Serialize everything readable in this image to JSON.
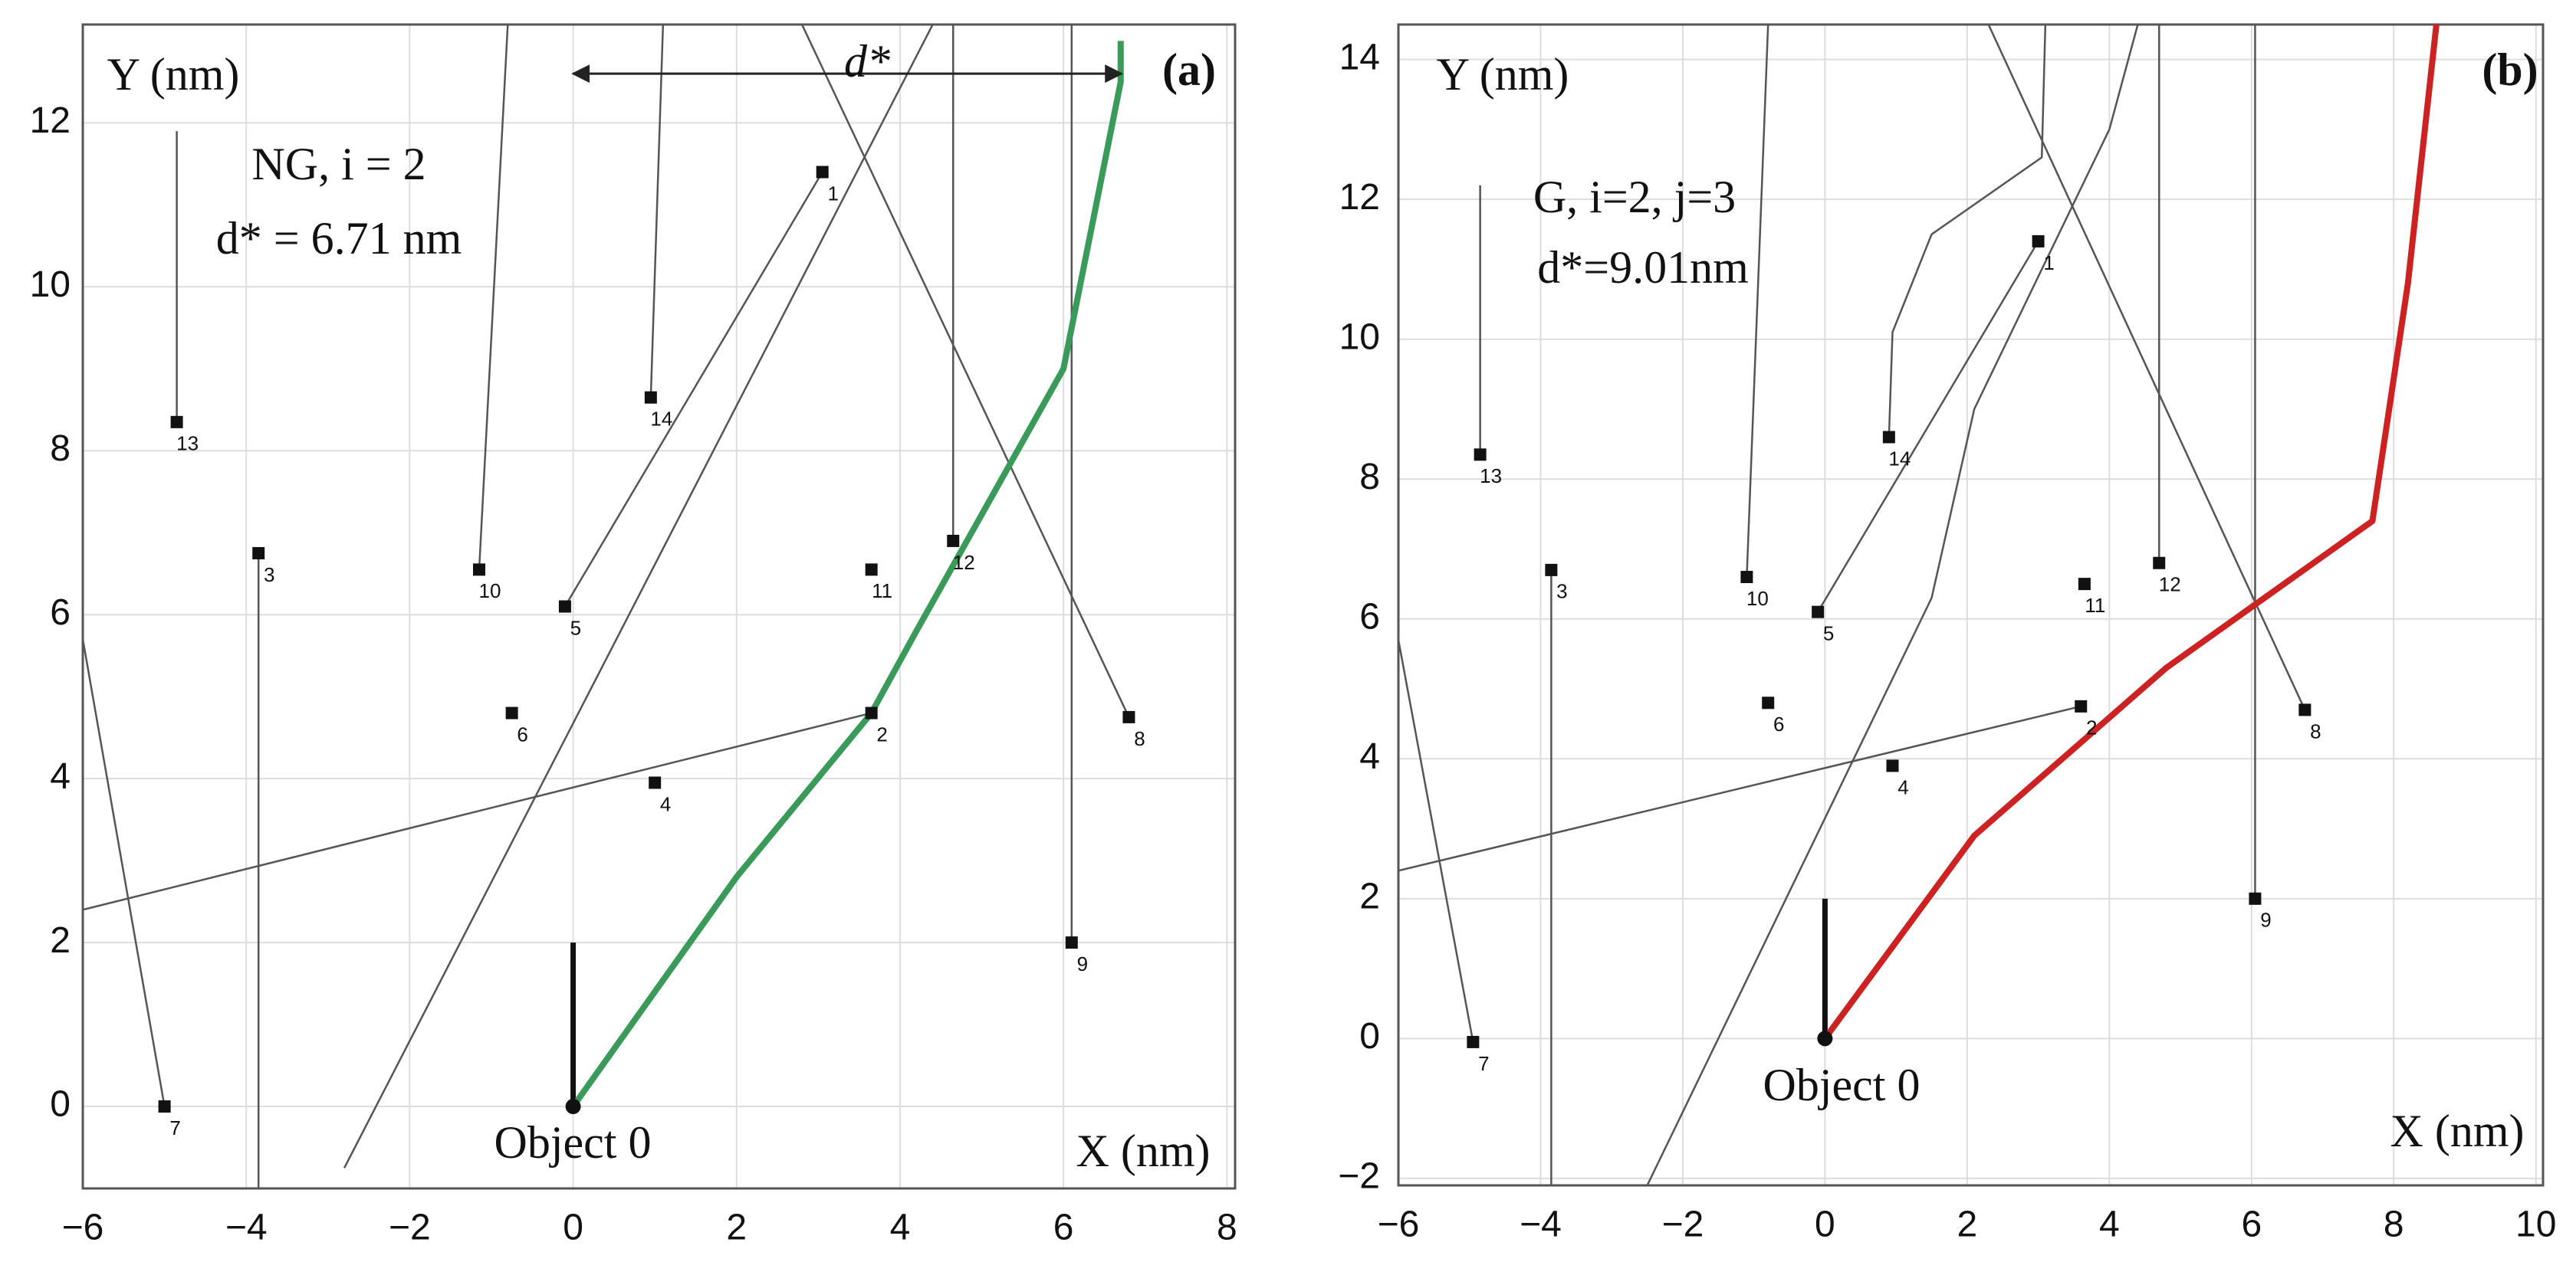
{
  "chart_data": [
    {
      "type": "trajectory",
      "panel_label": "(a)",
      "x_label": "X (nm)",
      "y_label": "Y (nm)",
      "annotations": [
        "NG, i = 2",
        "d* = 6.71 nm"
      ],
      "object_label": "Object 0",
      "xlim": [
        -6,
        8.1
      ],
      "ylim": [
        -1,
        13.2
      ],
      "xticks": [
        {
          "value": -6,
          "label": "−6"
        },
        {
          "value": -4,
          "label": "−4"
        },
        {
          "value": -2,
          "label": "−2"
        },
        0,
        2,
        4,
        6,
        8
      ],
      "yticks": [
        0,
        2,
        4,
        6,
        8,
        10,
        12
      ],
      "grid": true,
      "points": {
        "labels": [
          "1",
          "2",
          "3",
          "4",
          "5",
          "6",
          "7",
          "8",
          "9",
          "10",
          "11",
          "12",
          "13",
          "14"
        ],
        "x": [
          3.05,
          3.65,
          -3.85,
          1.0,
          -0.1,
          -0.75,
          -5,
          6.8,
          6.1,
          -1.15,
          3.65,
          4.65,
          -4.85,
          0.95
        ],
        "y": [
          11.4,
          4.8,
          6.75,
          3.95,
          6.1,
          4.8,
          0,
          4.75,
          2,
          6.55,
          6.55,
          6.9,
          8.35,
          8.65
        ]
      },
      "trajectories": [
        {
          "x": [
            -4.85,
            -4.85
          ],
          "y": [
            8.35,
            11.9
          ]
        },
        {
          "x": [
            -3.85,
            -3.85
          ],
          "y": [
            6.75,
            -1
          ]
        },
        {
          "x": [
            -5,
            -6
          ],
          "y": [
            0,
            5.7
          ]
        },
        {
          "x": [
            -1.15,
            -0.8
          ],
          "y": [
            6.55,
            13.2
          ]
        },
        {
          "x": [
            0.95,
            1.1
          ],
          "y": [
            8.65,
            13.2
          ]
        },
        {
          "x": [
            4.65,
            4.65
          ],
          "y": [
            6.9,
            13.2
          ]
        },
        {
          "x": [
            6.1,
            6.1
          ],
          "y": [
            2,
            13.2
          ]
        },
        {
          "x": [
            6.8,
            2.8
          ],
          "y": [
            4.75,
            13.2
          ]
        },
        {
          "x": [
            -0.1,
            3.05
          ],
          "y": [
            6.1,
            11.4
          ]
        },
        {
          "x": [
            3.65,
            -6
          ],
          "y": [
            4.8,
            2.4
          ]
        },
        {
          "x": [
            -2.8,
            4.4
          ],
          "y": [
            -0.75,
            13.2
          ]
        }
      ],
      "object_heading": {
        "x": [
          0,
          0
        ],
        "y": [
          0,
          2
        ]
      },
      "path": {
        "color": "#3a9a5a",
        "x": [
          0,
          2,
          3.65,
          4.2,
          6,
          6.7,
          6.7
        ],
        "y": [
          0,
          2.8,
          4.8,
          5.8,
          9,
          12.5,
          13
        ]
      },
      "dstar": {
        "label": "d*",
        "x": [
          0,
          6.71
        ],
        "y": 12.6
      }
    },
    {
      "type": "trajectory",
      "panel_label": "(b)",
      "x_label": "X (nm)",
      "y_label": "Y (nm)",
      "annotations": [
        "G, i=2, j=3",
        "d*=9.01nm"
      ],
      "object_label": "Object 0",
      "xlim": [
        -6,
        10.1
      ],
      "ylim": [
        -2.1,
        14.5
      ],
      "xticks": [
        {
          "value": -6,
          "label": "−6"
        },
        {
          "value": -4,
          "label": "−4"
        },
        {
          "value": -2,
          "label": "−2"
        },
        0,
        2,
        4,
        6,
        8,
        10
      ],
      "yticks": [
        {
          "value": -2,
          "label": "−2"
        },
        0,
        2,
        4,
        6,
        8,
        10,
        12,
        14
      ],
      "grid": true,
      "points": {
        "labels": [
          "1",
          "2",
          "3",
          "4",
          "5",
          "6",
          "7",
          "8",
          "9",
          "10",
          "11",
          "12",
          "13",
          "14"
        ],
        "x": [
          3,
          3.6,
          -3.85,
          0.95,
          -0.1,
          -0.8,
          -4.95,
          6.75,
          6.05,
          -1.1,
          3.65,
          4.7,
          -4.85,
          0.9
        ],
        "y": [
          11.4,
          4.75,
          6.7,
          3.9,
          6.1,
          4.8,
          -0.05,
          4.7,
          2,
          6.6,
          6.5,
          6.8,
          8.35,
          8.6
        ]
      },
      "trajectories": [
        {
          "x": [
            -4.85,
            -4.85
          ],
          "y": [
            8.35,
            12.2
          ]
        },
        {
          "x": [
            -3.85,
            -3.85
          ],
          "y": [
            6.7,
            -2.1
          ]
        },
        {
          "x": [
            -4.95,
            -6
          ],
          "y": [
            -0.05,
            5.7
          ]
        },
        {
          "x": [
            -1.1,
            -0.8
          ],
          "y": [
            6.6,
            14.5
          ]
        },
        {
          "x": [
            4.7,
            4.7
          ],
          "y": [
            6.8,
            14.5
          ]
        },
        {
          "x": [
            6.05,
            6.05
          ],
          "y": [
            2,
            14.5
          ]
        },
        {
          "x": [
            6.75,
            2.3
          ],
          "y": [
            4.7,
            14.5
          ]
        },
        {
          "x": [
            -0.1,
            3
          ],
          "y": [
            6.1,
            11.4
          ]
        },
        {
          "x": [
            3.6,
            -6
          ],
          "y": [
            4.75,
            2.4
          ]
        },
        {
          "x": [
            0.9,
            0.95,
            1.5,
            3.05,
            3.1
          ],
          "y": [
            8.6,
            10.1,
            11.5,
            12.6,
            14.5
          ]
        },
        {
          "x": [
            -2.5,
            1.5,
            2.1,
            4,
            4.4
          ],
          "y": [
            -2.1,
            6.3,
            9,
            13,
            14.5
          ]
        }
      ],
      "object_heading": {
        "x": [
          0,
          0
        ],
        "y": [
          0,
          2
        ]
      },
      "path": {
        "color": "#cc2222",
        "x": [
          0,
          2.1,
          4.8,
          7.7,
          8.2,
          8.6
        ],
        "y": [
          0,
          2.9,
          5.3,
          7.4,
          10.8,
          14.5
        ]
      }
    }
  ]
}
